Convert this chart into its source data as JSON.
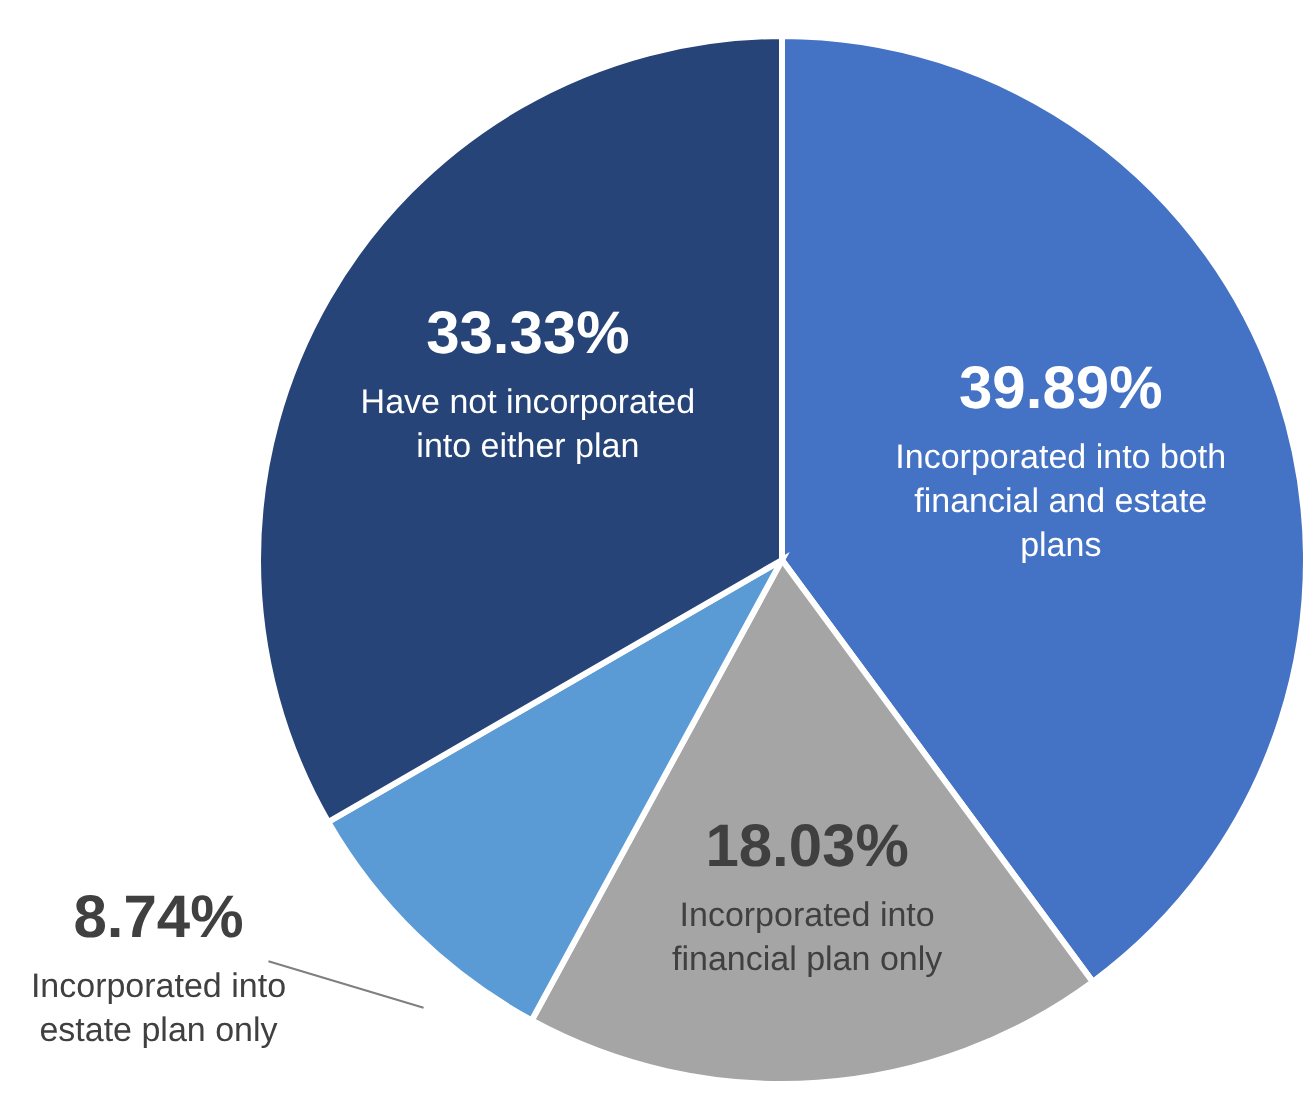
{
  "chart_data": {
    "type": "pie",
    "categories": [
      "Incorporated into both financial and estate plans",
      "Incorporated into financial plan only",
      "Incorporated into estate plan only",
      "Have not incorporated into either plan"
    ],
    "values": [
      39.89,
      18.03,
      8.74,
      33.33
    ],
    "colors": [
      "#4472c4",
      "#a5a5a5",
      "#5b9bd5",
      "#264478"
    ],
    "value_labels": [
      "39.89%",
      "18.03%",
      "8.74%",
      "33.33%"
    ],
    "legend": false
  }
}
